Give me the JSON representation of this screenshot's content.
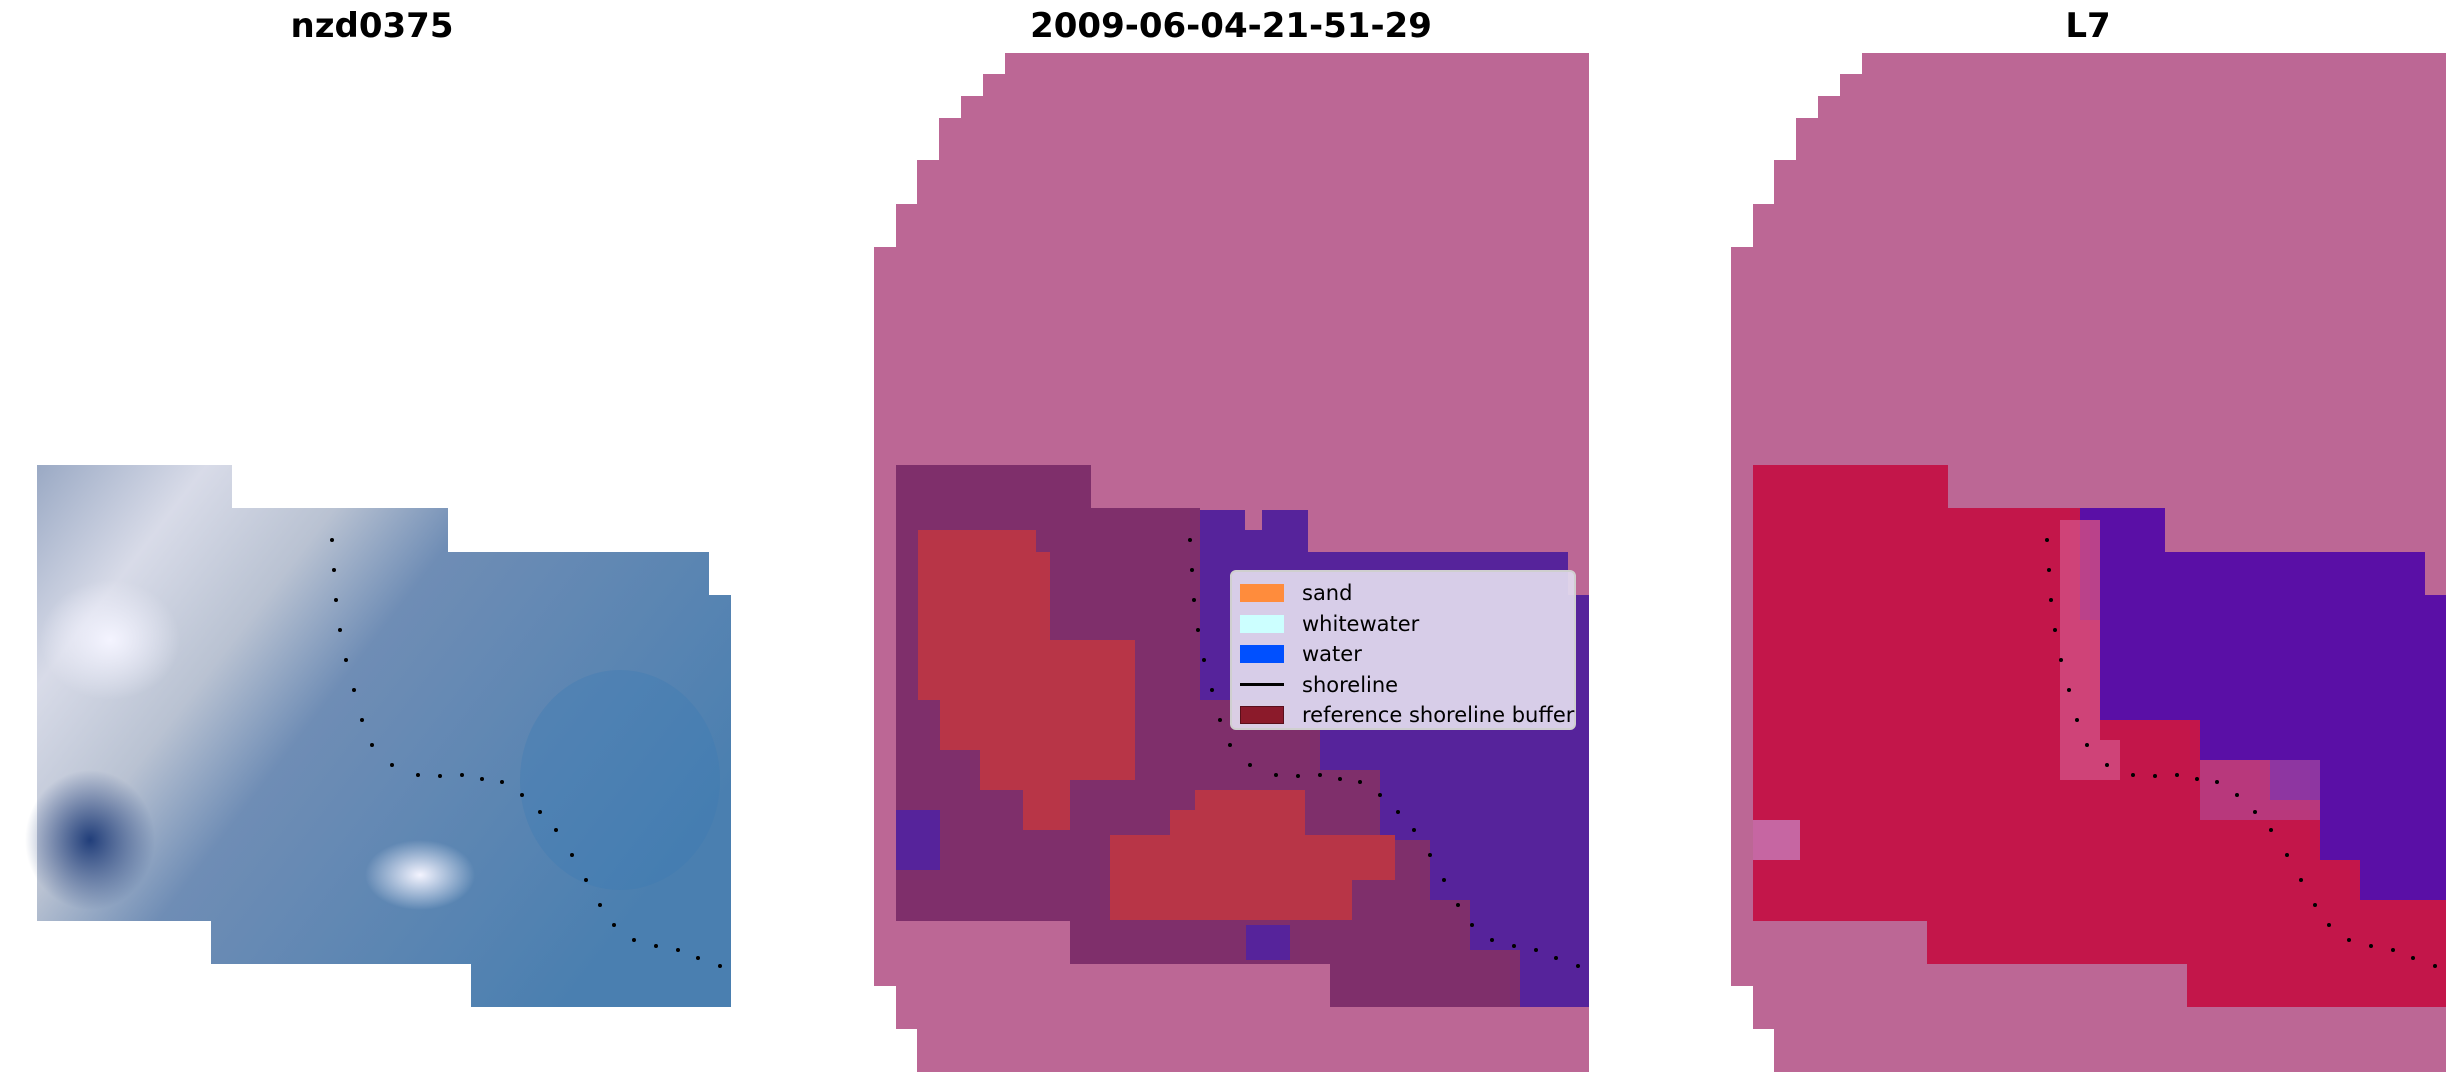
{
  "titles": {
    "left": "nzd0375",
    "middle": "2009-06-04-21-51-29",
    "right": "L7"
  },
  "legend": {
    "items": [
      {
        "label": "sand",
        "color": "#ff8c3c"
      },
      {
        "label": "whitewater",
        "color": "#ccffff"
      },
      {
        "label": "water",
        "color": "#0050ff"
      },
      {
        "label": "shoreline",
        "color": "#000000"
      },
      {
        "label": "reference shoreline buffer",
        "color": "#8b1a2a"
      }
    ]
  },
  "colors": {
    "background": "#ffffff",
    "mask_pink": "#bc6795",
    "sand_red": "#b83547",
    "water_purple": "#56239b",
    "index_red": "#bf0f3f",
    "index_violet": "#5a0fa3"
  }
}
